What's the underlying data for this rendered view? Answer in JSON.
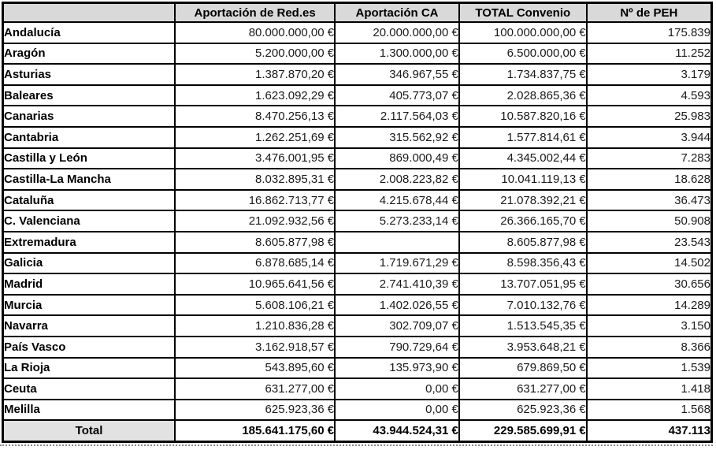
{
  "table": {
    "columns": [
      "",
      "Aportación de Red.es",
      "Aportación CA",
      "TOTAL Convenio",
      "Nº de PEH"
    ],
    "rows": [
      {
        "region": "Andalucía",
        "values": [
          "80.000.000,00 €",
          "20.000.000,00 €",
          "100.000.000,00 €",
          "175.839"
        ]
      },
      {
        "region": "Aragón",
        "values": [
          "5.200.000,00 €",
          "1.300.000,00 €",
          "6.500.000,00 €",
          "11.252"
        ]
      },
      {
        "region": "Asturias",
        "values": [
          "1.387.870,20 €",
          "346.967,55 €",
          "1.734.837,75 €",
          "3.179"
        ]
      },
      {
        "region": "Baleares",
        "values": [
          "1.623.092,29 €",
          "405.773,07 €",
          "2.028.865,36 €",
          "4.593"
        ]
      },
      {
        "region": "Canarias",
        "values": [
          "8.470.256,13 €",
          "2.117.564,03 €",
          "10.587.820,16 €",
          "25.983"
        ]
      },
      {
        "region": "Cantabria",
        "values": [
          "1.262.251,69 €",
          "315.562,92 €",
          "1.577.814,61 €",
          "3.944"
        ]
      },
      {
        "region": "Castilla y León",
        "values": [
          "3.476.001,95 €",
          "869.000,49 €",
          "4.345.002,44 €",
          "7.283"
        ]
      },
      {
        "region": "Castilla-La Mancha",
        "values": [
          "8.032.895,31 €",
          "2.008.223,82 €",
          "10.041.119,13 €",
          "18.628"
        ]
      },
      {
        "region": "Cataluña",
        "values": [
          "16.862.713,77 €",
          "4.215.678,44 €",
          "21.078.392,21 €",
          "36.473"
        ]
      },
      {
        "region": "C. Valenciana",
        "values": [
          "21.092.932,56 €",
          "5.273.233,14 €",
          "26.366.165,70 €",
          "50.908"
        ]
      },
      {
        "region": "Extremadura",
        "values": [
          "8.605.877,98 €",
          "",
          "8.605.877,98 €",
          "23.543"
        ]
      },
      {
        "region": "Galicia",
        "values": [
          "6.878.685,14 €",
          "1.719.671,29 €",
          "8.598.356,43 €",
          "14.502"
        ]
      },
      {
        "region": "Madrid",
        "values": [
          "10.965.641,56 €",
          "2.741.410,39 €",
          "13.707.051,95 €",
          "30.656"
        ]
      },
      {
        "region": "Murcia",
        "values": [
          "5.608.106,21 €",
          "1.402.026,55 €",
          "7.010.132,76 €",
          "14.289"
        ]
      },
      {
        "region": "Navarra",
        "values": [
          "1.210.836,28 €",
          "302.709,07 €",
          "1.513.545,35 €",
          "3.150"
        ]
      },
      {
        "region": "País Vasco",
        "values": [
          "3.162.918,57 €",
          "790.729,64 €",
          "3.953.648,21 €",
          "8.366"
        ]
      },
      {
        "region": "La Rioja",
        "values": [
          "543.895,60 €",
          "135.973,90 €",
          "679.869,50 €",
          "1.539"
        ]
      },
      {
        "region": "Ceuta",
        "values": [
          "631.277,00 €",
          "0,00 €",
          "631.277,00 €",
          "1.418"
        ]
      },
      {
        "region": "Melilla",
        "values": [
          "625.923,36 €",
          "0,00 €",
          "625.923,36 €",
          "1.568"
        ]
      }
    ],
    "total_row": {
      "label": "Total",
      "values": [
        "185.641.175,60 €",
        "43.944.524,31 €",
        "229.585.699,91 €",
        "437.113"
      ]
    }
  },
  "colors": {
    "header_bg": "#d9d9d9",
    "label_bg": "#e2e2e2",
    "border": "#000000",
    "cell_bg": "#ffffff",
    "page_break": "#8a8a8a"
  }
}
